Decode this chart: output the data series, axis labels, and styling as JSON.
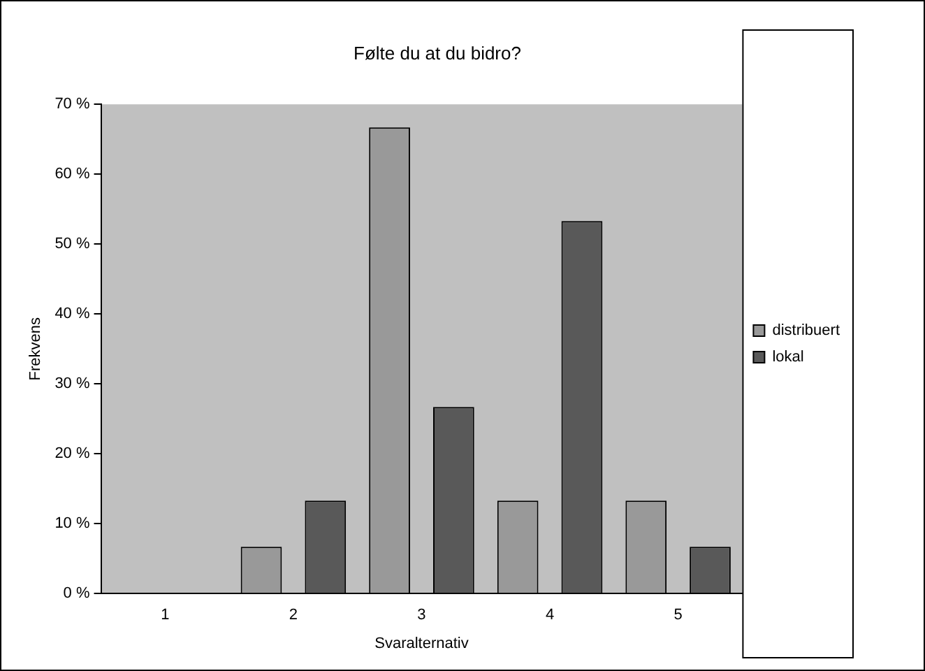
{
  "chart_data": {
    "type": "bar",
    "title": "Følte du at du bidro?",
    "xlabel": "Svaralternativ",
    "ylabel": "Frekvens",
    "categories": [
      "1",
      "2",
      "3",
      "4",
      "5"
    ],
    "series": [
      {
        "name": "distribuert",
        "color": "#999999",
        "values": [
          0,
          6.7,
          66.7,
          13.3,
          13.3
        ]
      },
      {
        "name": "lokal",
        "color": "#595959",
        "values": [
          0,
          13.3,
          26.7,
          53.3,
          6.7
        ]
      }
    ],
    "ylim": [
      0,
      70
    ],
    "yticks": [
      {
        "value": 0,
        "label": "0 %"
      },
      {
        "value": 10,
        "label": "10 %"
      },
      {
        "value": 20,
        "label": "20 %"
      },
      {
        "value": 30,
        "label": "30 %"
      },
      {
        "value": 40,
        "label": "40 %"
      },
      {
        "value": 50,
        "label": "50 %"
      },
      {
        "value": 60,
        "label": "60 %"
      },
      {
        "value": 70,
        "label": "70 %"
      }
    ],
    "grid": false,
    "legend": "right"
  }
}
